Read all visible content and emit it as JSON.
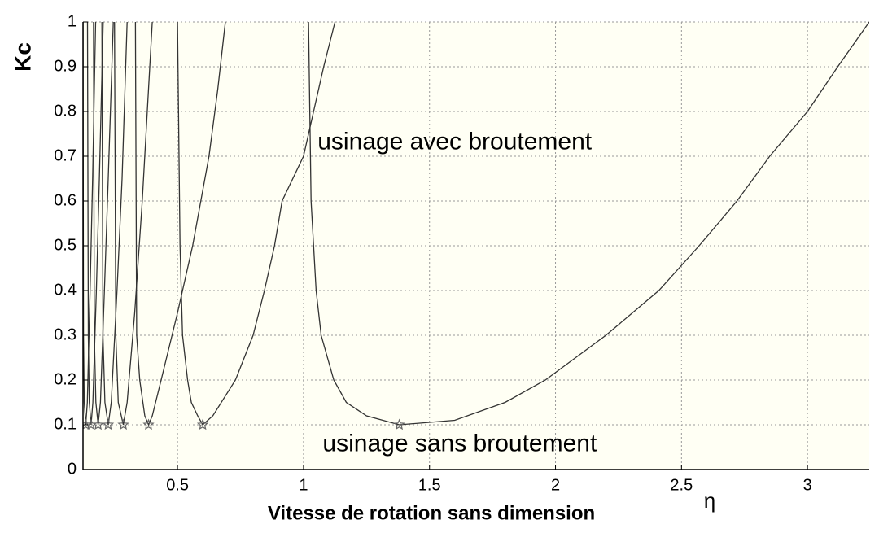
{
  "chart_data": {
    "type": "line",
    "ylabel": "Kc",
    "xlabel": "Vitesse de rotation sans dimension",
    "xsymbol": "η",
    "annotations": [
      {
        "text": "usinage avec broutement",
        "x": 1.6,
        "y": 0.73
      },
      {
        "text": "usinage sans broutement",
        "x": 1.62,
        "y": 0.055
      }
    ],
    "xlim": [
      0.125,
      3.245
    ],
    "ylim": [
      0,
      1
    ],
    "xticks": [
      0.5,
      1,
      1.5,
      2,
      2.5,
      3
    ],
    "yticks": [
      0,
      0.1,
      0.2,
      0.3,
      0.4,
      0.5,
      0.6,
      0.7,
      0.8,
      0.9,
      1
    ],
    "grid": true,
    "series": [
      {
        "color": "#333333",
        "x": [
          1.02,
          1.03,
          1.05,
          1.07,
          1.12,
          1.17,
          1.25,
          1.38,
          1.6,
          1.8,
          1.96,
          2.2,
          2.41,
          2.57,
          2.72,
          2.85,
          3.0,
          3.12,
          3.245
        ],
        "values": [
          1.0,
          0.6,
          0.4,
          0.3,
          0.2,
          0.15,
          0.12,
          0.1,
          0.11,
          0.15,
          0.2,
          0.3,
          0.4,
          0.5,
          0.6,
          0.7,
          0.8,
          0.9,
          1.0
        ]
      },
      {
        "color": "#333333",
        "x": [
          0.5,
          0.51,
          0.52,
          0.54,
          0.555,
          0.58,
          0.6,
          0.64,
          0.73,
          0.8,
          0.845,
          0.885,
          0.915,
          1.0,
          1.04,
          1.08,
          1.125
        ],
        "values": [
          1.0,
          0.5,
          0.3,
          0.2,
          0.15,
          0.12,
          0.1,
          0.12,
          0.2,
          0.3,
          0.4,
          0.5,
          0.6,
          0.7,
          0.8,
          0.9,
          1.0
        ]
      },
      {
        "color": "#333333",
        "x": [
          0.333,
          0.338,
          0.35,
          0.37,
          0.385,
          0.4,
          0.435,
          0.5,
          0.56,
          0.625,
          0.66,
          0.69
        ],
        "values": [
          1.0,
          0.3,
          0.2,
          0.12,
          0.1,
          0.12,
          0.2,
          0.35,
          0.5,
          0.7,
          0.85,
          1.0
        ]
      },
      {
        "color": "#333333",
        "x": [
          0.25,
          0.255,
          0.265,
          0.285,
          0.3,
          0.33,
          0.36,
          0.4
        ],
        "values": [
          1.0,
          0.3,
          0.15,
          0.1,
          0.15,
          0.35,
          0.6,
          1.0
        ]
      },
      {
        "color": "#333333",
        "x": [
          0.2,
          0.204,
          0.212,
          0.225,
          0.237,
          0.26,
          0.28,
          0.3
        ],
        "values": [
          1.0,
          0.3,
          0.15,
          0.1,
          0.15,
          0.4,
          0.65,
          1.0
        ]
      },
      {
        "color": "#333333",
        "x": [
          0.1667,
          0.17,
          0.176,
          0.185,
          0.194,
          0.21,
          0.225,
          0.245
        ],
        "values": [
          1.0,
          0.3,
          0.15,
          0.1,
          0.15,
          0.4,
          0.65,
          1.0
        ]
      },
      {
        "color": "#333333",
        "x": [
          0.1429,
          0.146,
          0.15,
          0.157,
          0.164,
          0.178,
          0.19,
          0.205
        ],
        "values": [
          1.0,
          0.3,
          0.15,
          0.1,
          0.15,
          0.4,
          0.65,
          1.0
        ]
      },
      {
        "color": "#333333",
        "x": [
          0.125,
          0.127,
          0.13,
          0.136,
          0.142,
          0.153,
          0.163,
          0.175
        ],
        "values": [
          1.0,
          0.3,
          0.15,
          0.1,
          0.15,
          0.4,
          0.65,
          1.0
        ]
      },
      {
        "color": "#666666",
        "marker": "star",
        "x": [
          1.38,
          0.6,
          0.385,
          0.285,
          0.225,
          0.185,
          0.157,
          0.136
        ],
        "values": [
          0.1,
          0.1,
          0.1,
          0.1,
          0.1,
          0.1,
          0.1,
          0.1
        ]
      }
    ]
  }
}
